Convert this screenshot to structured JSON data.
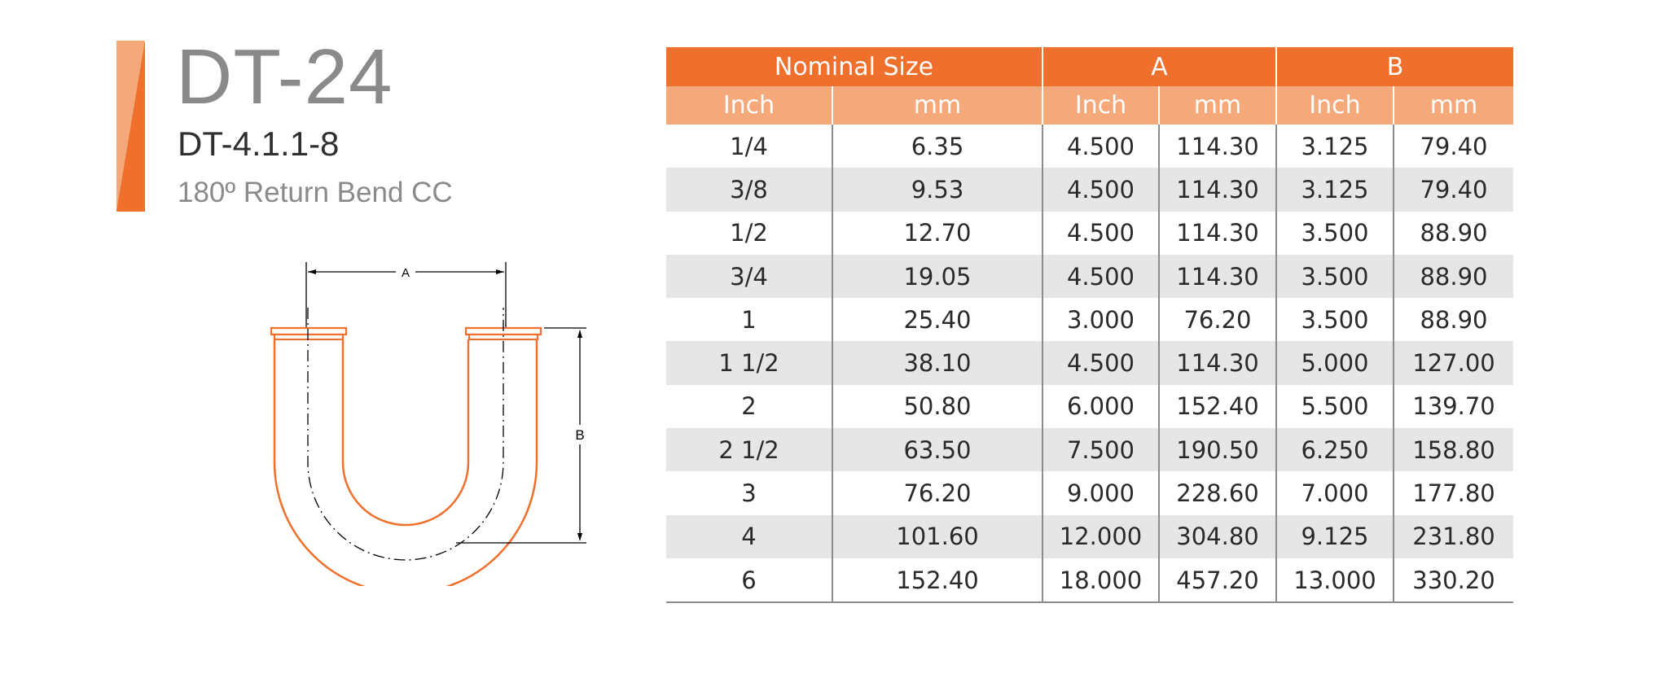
{
  "product": {
    "title": "DT-24",
    "code": "DT-4.1.1-8",
    "description": "180º Return Bend CC"
  },
  "drawing": {
    "label_a": "A",
    "label_b": "B"
  },
  "colors": {
    "accent": "#ef6f2c",
    "accent_light": "#f5a97a",
    "stripe": "#e6e6e6"
  },
  "table": {
    "groups": [
      "Nominal Size",
      "A",
      "B"
    ],
    "subheaders": [
      "Inch",
      "mm",
      "Inch",
      "mm",
      "Inch",
      "mm"
    ],
    "rows": [
      [
        "1/4",
        "6.35",
        "4.500",
        "114.30",
        "3.125",
        "79.40"
      ],
      [
        "3/8",
        "9.53",
        "4.500",
        "114.30",
        "3.125",
        "79.40"
      ],
      [
        "1/2",
        "12.70",
        "4.500",
        "114.30",
        "3.500",
        "88.90"
      ],
      [
        "3/4",
        "19.05",
        "4.500",
        "114.30",
        "3.500",
        "88.90"
      ],
      [
        "1",
        "25.40",
        "3.000",
        "76.20",
        "3.500",
        "88.90"
      ],
      [
        "1 1/2",
        "38.10",
        "4.500",
        "114.30",
        "5.000",
        "127.00"
      ],
      [
        "2",
        "50.80",
        "6.000",
        "152.40",
        "5.500",
        "139.70"
      ],
      [
        "2 1/2",
        "63.50",
        "7.500",
        "190.50",
        "6.250",
        "158.80"
      ],
      [
        "3",
        "76.20",
        "9.000",
        "228.60",
        "7.000",
        "177.80"
      ],
      [
        "4",
        "101.60",
        "12.000",
        "304.80",
        "9.125",
        "231.80"
      ],
      [
        "6",
        "152.40",
        "18.000",
        "457.20",
        "13.000",
        "330.20"
      ]
    ]
  }
}
